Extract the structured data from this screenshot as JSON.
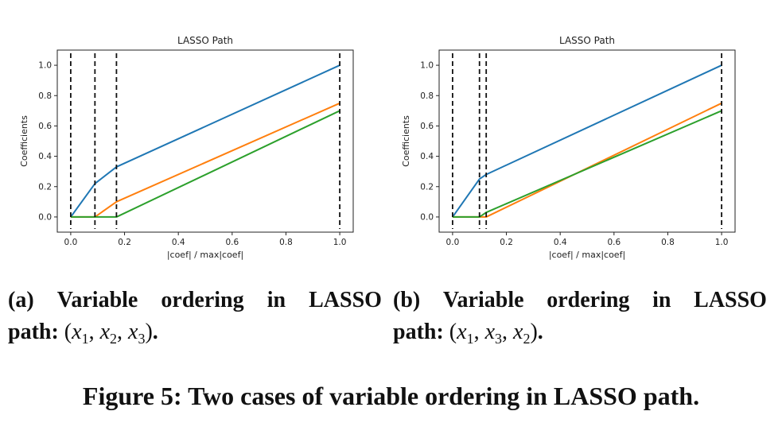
{
  "chart_data": [
    {
      "type": "line",
      "title": "LASSO Path",
      "xlabel": "|coef| / max|coef|",
      "ylabel": "Coefficients",
      "xlim": [
        -0.05,
        1.05
      ],
      "ylim": [
        -0.1,
        1.1
      ],
      "xticks": [
        "0.0",
        "0.2",
        "0.4",
        "0.6",
        "0.8",
        "1.0"
      ],
      "yticks": [
        "0.0",
        "0.2",
        "0.4",
        "0.6",
        "0.8",
        "1.0"
      ],
      "grid": false,
      "breakpoints": [
        0.0,
        0.09,
        0.17,
        1.0
      ],
      "series": [
        {
          "color": "#1f77b4",
          "points": [
            [
              0.0,
              0.0
            ],
            [
              0.09,
              0.22
            ],
            [
              0.17,
              0.33
            ],
            [
              1.0,
              1.0
            ]
          ]
        },
        {
          "color": "#ff7f0e",
          "points": [
            [
              0.0,
              0.0
            ],
            [
              0.09,
              0.0
            ],
            [
              0.17,
              0.1
            ],
            [
              1.0,
              0.75
            ]
          ]
        },
        {
          "color": "#2ca02c",
          "points": [
            [
              0.0,
              0.0
            ],
            [
              0.09,
              0.0
            ],
            [
              0.17,
              0.0
            ],
            [
              1.0,
              0.7
            ]
          ]
        }
      ]
    },
    {
      "type": "line",
      "title": "LASSO Path",
      "xlabel": "|coef| / max|coef|",
      "ylabel": "Coefficients",
      "xlim": [
        -0.05,
        1.05
      ],
      "ylim": [
        -0.1,
        1.1
      ],
      "xticks": [
        "0.0",
        "0.2",
        "0.4",
        "0.6",
        "0.8",
        "1.0"
      ],
      "yticks": [
        "0.0",
        "0.2",
        "0.4",
        "0.6",
        "0.8",
        "1.0"
      ],
      "grid": false,
      "breakpoints": [
        0.0,
        0.1,
        0.125,
        1.0
      ],
      "series": [
        {
          "color": "#1f77b4",
          "points": [
            [
              0.0,
              0.0
            ],
            [
              0.1,
              0.25
            ],
            [
              0.125,
              0.28
            ],
            [
              1.0,
              1.0
            ]
          ]
        },
        {
          "color": "#ff7f0e",
          "points": [
            [
              0.0,
              0.0
            ],
            [
              0.1,
              0.0
            ],
            [
              0.125,
              0.0
            ],
            [
              1.0,
              0.75
            ]
          ]
        },
        {
          "color": "#2ca02c",
          "points": [
            [
              0.0,
              0.0
            ],
            [
              0.1,
              0.0
            ],
            [
              0.125,
              0.03
            ],
            [
              1.0,
              0.7
            ]
          ]
        }
      ]
    }
  ],
  "captions": {
    "a": {
      "label": "(a)",
      "words": [
        "Variable",
        "ordering",
        "in",
        "LASSO"
      ],
      "line2_prefix": "path:",
      "line2_math": [
        "x",
        "1",
        "x",
        "2",
        "x",
        "3"
      ],
      "line2_suffix": "."
    },
    "b": {
      "label": "(b)",
      "words": [
        "Variable",
        "ordering",
        "in",
        "LASSO"
      ],
      "line2_prefix": "path:",
      "line2_math": [
        "x",
        "1",
        "x",
        "3",
        "x",
        "2"
      ],
      "line2_suffix": "."
    }
  },
  "figure_caption": "Figure 5: Two cases of variable ordering in LASSO path."
}
